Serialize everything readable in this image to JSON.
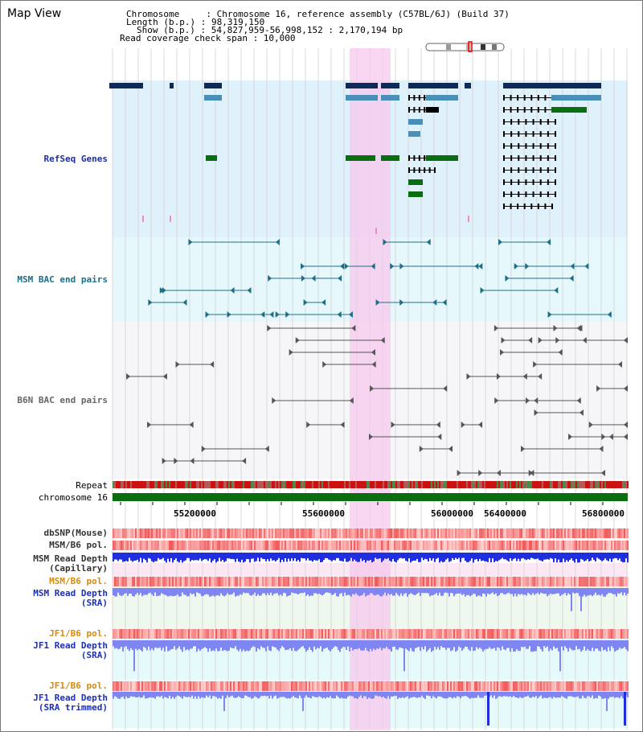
{
  "window": {
    "title": "Map View"
  },
  "info": {
    "chromosome_line": "Chromosome     : Chromosome 16, reference assembly (C57BL/6J) (Build 37)",
    "length_line": "Length (b.p.) : 98,319,150",
    "show_line": "Show (b.p.) : 54,827,959-56,998,152 : 2,170,194 bp",
    "coverage_line": "Read coverage check span : 10,000"
  },
  "colors": {
    "refseq_bg": "#dff1fb",
    "msm_bac_bg": "#e6f8fb",
    "b6n_bac_bg": "#f6f6f8",
    "highlight": "#f7c8ee",
    "dark_gene": "#0d2a5c",
    "mid_gene": "#4a8fb8",
    "green_gene": "#0b6d12",
    "msm_bac_line": "#1d6f88",
    "b6n_bac_line": "#555555",
    "repeat_red": "#cc1111",
    "chromosome_green": "#0b6d12",
    "depth_blue": "#1f2fe0",
    "depth_light_blue": "#7f86f2"
  },
  "tracks": {
    "refseq_genes": "RefSeq Genes",
    "msm_bac": "MSM BAC end pairs",
    "b6n_bac": "B6N BAC end pairs",
    "repeat": "Repeat",
    "chromosome": "chromosome 16",
    "dbsnp": "dbSNP(Mouse)",
    "msm_b6_pol": "MSM/B6 pol.",
    "msm_depth_cap_1": "MSM Read Depth",
    "msm_depth_cap_2": "(Capillary)",
    "msm_b6_pol_2": "MSM/B6 pol.",
    "msm_depth_sra_1": "MSM Read Depth",
    "msm_depth_sra_2": "(SRA)",
    "jf1_b6_pol": "JF1/B6 pol.",
    "jf1_depth_sra_1": "JF1 Read Depth",
    "jf1_depth_sra_2": "(SRA)",
    "jf1_b6_pol_2": "JF1/B6 pol.",
    "jf1_depth_trim_1": "JF1 Read Depth",
    "jf1_depth_trim_2": "(SRA trimmed)"
  },
  "axis": {
    "ticks": [
      "55200000",
      "55600000",
      "56000000",
      "56400000",
      "56800000"
    ]
  }
}
